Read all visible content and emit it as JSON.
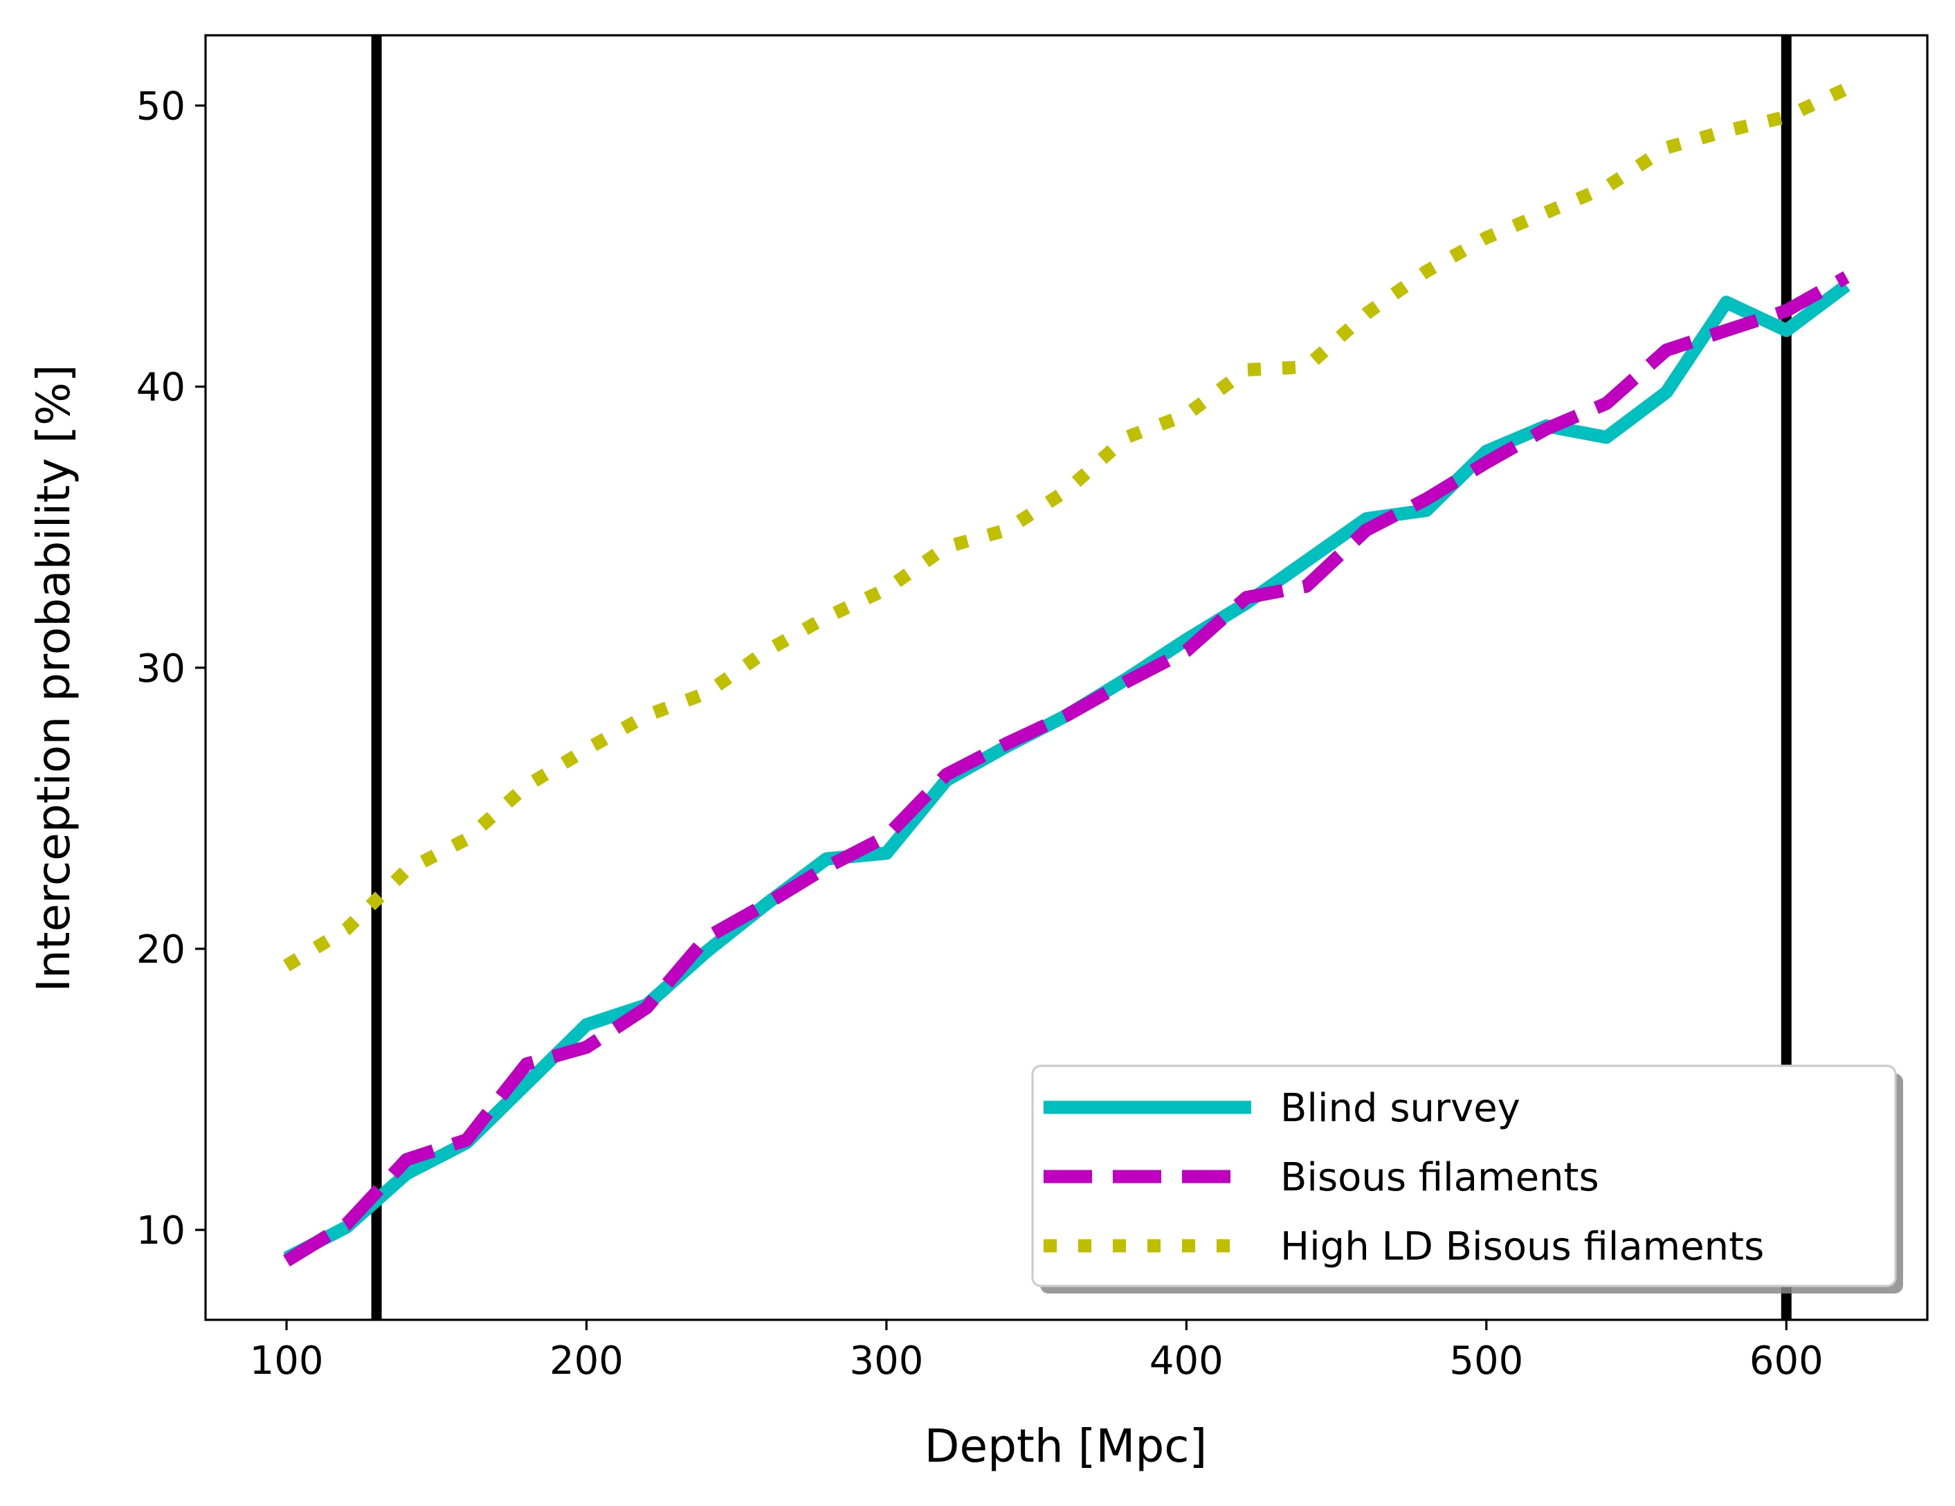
{
  "chart_data": {
    "type": "line",
    "title": "",
    "xlabel": "Depth [Mpc]",
    "ylabel": "Interception probability [%]",
    "xlim": [
      73,
      647
    ],
    "ylim": [
      6.8,
      52.5
    ],
    "xticks": [
      100,
      200,
      300,
      400,
      500,
      600
    ],
    "yticks": [
      10,
      20,
      30,
      40,
      50
    ],
    "grid": false,
    "legend_position": "lower right",
    "vertical_lines": [
      130,
      600
    ],
    "series": [
      {
        "name": "Blind survey",
        "style": "solid",
        "color": "#00bfbf",
        "x": [
          100,
          120,
          140,
          160,
          180,
          200,
          220,
          240,
          260,
          280,
          300,
          320,
          340,
          360,
          380,
          400,
          420,
          440,
          460,
          480,
          500,
          520,
          540,
          560,
          580,
          600,
          620
        ],
        "y": [
          9.0,
          10.1,
          12.0,
          13.1,
          15.2,
          17.3,
          18.0,
          19.9,
          21.6,
          23.2,
          23.4,
          26.0,
          27.2,
          28.3,
          29.6,
          31.0,
          32.3,
          33.8,
          35.3,
          35.6,
          37.7,
          38.6,
          38.2,
          39.8,
          43.0,
          42.0,
          43.6
        ]
      },
      {
        "name": "Bisous filaments",
        "style": "dashed",
        "color": "#bf00bf",
        "x": [
          100,
          120,
          140,
          160,
          180,
          200,
          220,
          240,
          260,
          280,
          300,
          320,
          340,
          360,
          380,
          400,
          420,
          440,
          460,
          480,
          500,
          520,
          540,
          560,
          580,
          600,
          620
        ],
        "y": [
          8.9,
          10.2,
          12.5,
          13.2,
          15.9,
          16.5,
          17.9,
          20.4,
          21.6,
          22.9,
          24.0,
          26.2,
          27.3,
          28.3,
          29.5,
          30.6,
          32.5,
          32.9,
          34.9,
          36.0,
          37.3,
          38.5,
          39.4,
          41.3,
          42.0,
          42.7,
          43.9
        ]
      },
      {
        "name": "High LD Bisous filaments",
        "style": "dotted",
        "color": "#bfbf00",
        "x": [
          100,
          120,
          140,
          160,
          180,
          200,
          220,
          240,
          260,
          280,
          300,
          320,
          340,
          360,
          380,
          400,
          420,
          440,
          460,
          480,
          500,
          520,
          540,
          560,
          580,
          600,
          620
        ],
        "y": [
          19.4,
          20.7,
          22.8,
          23.9,
          25.8,
          27.1,
          28.3,
          29.1,
          30.6,
          31.8,
          32.8,
          34.3,
          34.9,
          36.3,
          38.2,
          39.0,
          40.6,
          40.7,
          42.6,
          44.1,
          45.3,
          46.2,
          47.1,
          48.5,
          49.1,
          49.6,
          50.6
        ]
      }
    ]
  }
}
